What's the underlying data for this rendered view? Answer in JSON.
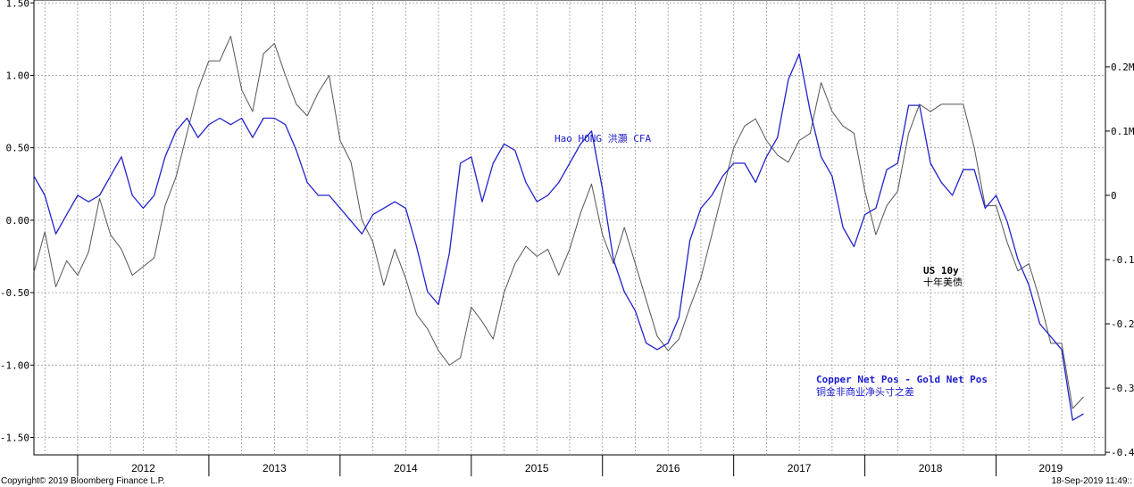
{
  "chart_data": {
    "type": "line",
    "x_axis": {
      "years": [
        "2012",
        "2013",
        "2014",
        "2015",
        "2016",
        "2017",
        "2018",
        "2019"
      ],
      "range": [
        "2011-09",
        "2019-11"
      ]
    },
    "y_left": {
      "range": [
        -1.62,
        1.52
      ],
      "ticks": [
        1.5,
        1.0,
        0.5,
        0.0,
        -0.5,
        -1.0,
        -1.5
      ],
      "tick_labels": [
        "1.50",
        "1.00",
        "0.50",
        "0.00",
        "-0.50",
        "-1.00",
        "-1.50"
      ]
    },
    "y_right": {
      "range": [
        -0.404,
        0.304
      ],
      "ticks": [
        0.2,
        0.1,
        0.0,
        -0.1,
        -0.2,
        -0.3,
        -0.4
      ],
      "tick_labels": [
        "0.2M",
        "0.1M",
        "0",
        "-0.1",
        "-0.2",
        "-0.3",
        "-0.4"
      ]
    },
    "grid": true,
    "series": [
      {
        "name": "US 10y",
        "label_cn": "十年美债",
        "color": "#555555",
        "axis": "left",
        "points": [
          [
            "2011-09",
            -0.36
          ],
          [
            "2011-10",
            -0.08
          ],
          [
            "2011-11",
            -0.46
          ],
          [
            "2011-12",
            -0.28
          ],
          [
            "2012-01",
            -0.38
          ],
          [
            "2012-02",
            -0.22
          ],
          [
            "2012-03",
            0.15
          ],
          [
            "2012-04",
            -0.1
          ],
          [
            "2012-05",
            -0.2
          ],
          [
            "2012-06",
            -0.38
          ],
          [
            "2012-07",
            -0.32
          ],
          [
            "2012-08",
            -0.26
          ],
          [
            "2012-09",
            0.1
          ],
          [
            "2012-10",
            0.3
          ],
          [
            "2012-11",
            0.6
          ],
          [
            "2012-12",
            0.9
          ],
          [
            "2013-01",
            1.1
          ],
          [
            "2013-02",
            1.1
          ],
          [
            "2013-03",
            1.27
          ],
          [
            "2013-04",
            0.9
          ],
          [
            "2013-05",
            0.75
          ],
          [
            "2013-06",
            1.15
          ],
          [
            "2013-07",
            1.22
          ],
          [
            "2013-08",
            1.0
          ],
          [
            "2013-09",
            0.8
          ],
          [
            "2013-10",
            0.72
          ],
          [
            "2013-11",
            0.88
          ],
          [
            "2013-12",
            1.0
          ],
          [
            "2014-01",
            0.55
          ],
          [
            "2014-02",
            0.4
          ],
          [
            "2014-03",
            0.0
          ],
          [
            "2014-04",
            -0.15
          ],
          [
            "2014-05",
            -0.45
          ],
          [
            "2014-06",
            -0.2
          ],
          [
            "2014-07",
            -0.4
          ],
          [
            "2014-08",
            -0.65
          ],
          [
            "2014-09",
            -0.75
          ],
          [
            "2014-10",
            -0.9
          ],
          [
            "2014-11",
            -1.0
          ],
          [
            "2014-12",
            -0.95
          ],
          [
            "2015-01",
            -0.6
          ],
          [
            "2015-02",
            -0.7
          ],
          [
            "2015-03",
            -0.82
          ],
          [
            "2015-04",
            -0.5
          ],
          [
            "2015-05",
            -0.3
          ],
          [
            "2015-06",
            -0.18
          ],
          [
            "2015-07",
            -0.25
          ],
          [
            "2015-08",
            -0.2
          ],
          [
            "2015-09",
            -0.38
          ],
          [
            "2015-10",
            -0.2
          ],
          [
            "2015-11",
            0.05
          ],
          [
            "2015-12",
            0.25
          ],
          [
            "2016-01",
            -0.1
          ],
          [
            "2016-02",
            -0.3
          ],
          [
            "2016-03",
            -0.05
          ],
          [
            "2016-04",
            -0.3
          ],
          [
            "2016-05",
            -0.55
          ],
          [
            "2016-06",
            -0.8
          ],
          [
            "2016-07",
            -0.9
          ],
          [
            "2016-08",
            -0.82
          ],
          [
            "2016-09",
            -0.6
          ],
          [
            "2016-10",
            -0.4
          ],
          [
            "2016-11",
            -0.1
          ],
          [
            "2016-12",
            0.2
          ],
          [
            "2017-01",
            0.5
          ],
          [
            "2017-02",
            0.65
          ],
          [
            "2017-03",
            0.7
          ],
          [
            "2017-04",
            0.55
          ],
          [
            "2017-05",
            0.45
          ],
          [
            "2017-06",
            0.4
          ],
          [
            "2017-07",
            0.55
          ],
          [
            "2017-08",
            0.6
          ],
          [
            "2017-09",
            0.95
          ],
          [
            "2017-10",
            0.75
          ],
          [
            "2017-11",
            0.65
          ],
          [
            "2017-12",
            0.6
          ],
          [
            "2018-01",
            0.2
          ],
          [
            "2018-02",
            -0.1
          ],
          [
            "2018-03",
            0.1
          ],
          [
            "2018-04",
            0.2
          ],
          [
            "2018-05",
            0.6
          ],
          [
            "2018-06",
            0.8
          ],
          [
            "2018-07",
            0.75
          ],
          [
            "2018-08",
            0.8
          ],
          [
            "2018-09",
            0.8
          ],
          [
            "2018-10",
            0.8
          ],
          [
            "2018-11",
            0.5
          ],
          [
            "2018-12",
            0.1
          ],
          [
            "2019-01",
            0.1
          ],
          [
            "2019-02",
            -0.15
          ],
          [
            "2019-03",
            -0.35
          ],
          [
            "2019-04",
            -0.3
          ],
          [
            "2019-05",
            -0.55
          ],
          [
            "2019-06",
            -0.85
          ],
          [
            "2019-07",
            -0.85
          ],
          [
            "2019-08",
            -1.3
          ],
          [
            "2019-09",
            -1.22
          ]
        ]
      },
      {
        "name": "Copper Net Pos - Gold Net Pos",
        "label_cn": "铜金非商业净头寸之差",
        "color": "#2222cc",
        "axis": "right",
        "points": [
          [
            "2011-09",
            0.03
          ],
          [
            "2011-10",
            0.0
          ],
          [
            "2011-11",
            -0.06
          ],
          [
            "2011-12",
            -0.03
          ],
          [
            "2012-01",
            0.0
          ],
          [
            "2012-02",
            -0.01
          ],
          [
            "2012-03",
            0.0
          ],
          [
            "2012-04",
            0.03
          ],
          [
            "2012-05",
            0.06
          ],
          [
            "2012-06",
            0.0
          ],
          [
            "2012-07",
            -0.02
          ],
          [
            "2012-08",
            0.0
          ],
          [
            "2012-09",
            0.06
          ],
          [
            "2012-10",
            0.1
          ],
          [
            "2012-11",
            0.12
          ],
          [
            "2012-12",
            0.09
          ],
          [
            "2013-01",
            0.11
          ],
          [
            "2013-02",
            0.12
          ],
          [
            "2013-03",
            0.11
          ],
          [
            "2013-04",
            0.12
          ],
          [
            "2013-05",
            0.09
          ],
          [
            "2013-06",
            0.12
          ],
          [
            "2013-07",
            0.12
          ],
          [
            "2013-08",
            0.11
          ],
          [
            "2013-09",
            0.07
          ],
          [
            "2013-10",
            0.02
          ],
          [
            "2013-11",
            0.0
          ],
          [
            "2013-12",
            0.0
          ],
          [
            "2014-01",
            -0.02
          ],
          [
            "2014-02",
            -0.04
          ],
          [
            "2014-03",
            -0.06
          ],
          [
            "2014-04",
            -0.03
          ],
          [
            "2014-05",
            -0.02
          ],
          [
            "2014-06",
            -0.01
          ],
          [
            "2014-07",
            -0.02
          ],
          [
            "2014-08",
            -0.08
          ],
          [
            "2014-09",
            -0.15
          ],
          [
            "2014-10",
            -0.17
          ],
          [
            "2014-11",
            -0.09
          ],
          [
            "2014-12",
            0.05
          ],
          [
            "2015-01",
            0.06
          ],
          [
            "2015-02",
            -0.01
          ],
          [
            "2015-03",
            0.05
          ],
          [
            "2015-04",
            0.08
          ],
          [
            "2015-05",
            0.07
          ],
          [
            "2015-06",
            0.02
          ],
          [
            "2015-07",
            -0.01
          ],
          [
            "2015-08",
            0.0
          ],
          [
            "2015-09",
            0.02
          ],
          [
            "2015-10",
            0.05
          ],
          [
            "2015-11",
            0.08
          ],
          [
            "2015-12",
            0.1
          ],
          [
            "2016-01",
            0.01
          ],
          [
            "2016-02",
            -0.1
          ],
          [
            "2016-03",
            -0.15
          ],
          [
            "2016-04",
            -0.18
          ],
          [
            "2016-05",
            -0.23
          ],
          [
            "2016-06",
            -0.24
          ],
          [
            "2016-07",
            -0.23
          ],
          [
            "2016-08",
            -0.19
          ],
          [
            "2016-09",
            -0.07
          ],
          [
            "2016-10",
            -0.02
          ],
          [
            "2016-11",
            0.0
          ],
          [
            "2016-12",
            0.03
          ],
          [
            "2017-01",
            0.05
          ],
          [
            "2017-02",
            0.05
          ],
          [
            "2017-03",
            0.02
          ],
          [
            "2017-04",
            0.06
          ],
          [
            "2017-05",
            0.09
          ],
          [
            "2017-06",
            0.18
          ],
          [
            "2017-07",
            0.22
          ],
          [
            "2017-08",
            0.13
          ],
          [
            "2017-09",
            0.06
          ],
          [
            "2017-10",
            0.03
          ],
          [
            "2017-11",
            -0.05
          ],
          [
            "2017-12",
            -0.08
          ],
          [
            "2018-01",
            -0.03
          ],
          [
            "2018-02",
            -0.02
          ],
          [
            "2018-03",
            0.04
          ],
          [
            "2018-04",
            0.05
          ],
          [
            "2018-05",
            0.14
          ],
          [
            "2018-06",
            0.14
          ],
          [
            "2018-07",
            0.05
          ],
          [
            "2018-08",
            0.02
          ],
          [
            "2018-09",
            0.0
          ],
          [
            "2018-10",
            0.04
          ],
          [
            "2018-11",
            0.04
          ],
          [
            "2018-12",
            -0.02
          ],
          [
            "2019-01",
            0.0
          ],
          [
            "2019-02",
            -0.04
          ],
          [
            "2019-03",
            -0.1
          ],
          [
            "2019-04",
            -0.14
          ],
          [
            "2019-05",
            -0.2
          ],
          [
            "2019-06",
            -0.22
          ],
          [
            "2019-07",
            -0.24
          ],
          [
            "2019-08",
            -0.35
          ],
          [
            "2019-09",
            -0.34
          ]
        ]
      }
    ],
    "annotations": {
      "watermark": "Hao HONG 洪灝 CFA",
      "copper_label_en": "Copper Net Pos - Gold Net Pos",
      "copper_label_cn": "铜金非商业净头寸之差",
      "us10y_label_en": "US 10y",
      "us10y_label_cn": "十年美债"
    },
    "colors": {
      "grid": "#9a9a9a",
      "annotation_blue": "#1a1acc"
    }
  },
  "footer": {
    "copyright": "Copyright© 2019 Bloomberg Finance L.P.",
    "timestamp": "18-Sep-2019 11:49::"
  }
}
